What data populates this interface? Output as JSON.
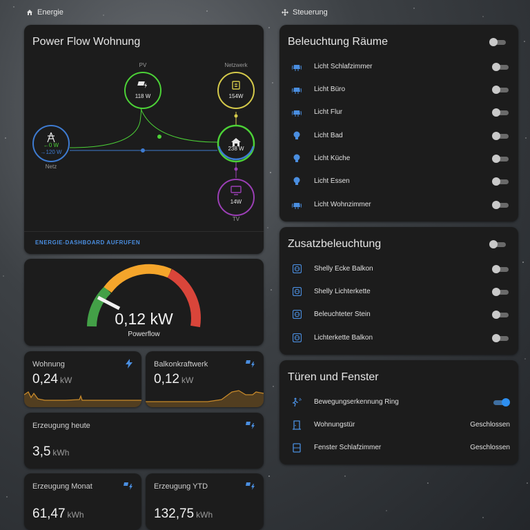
{
  "columns": {
    "left_title": "Energie",
    "right_title": "Steuerung"
  },
  "power_flow": {
    "title": "Power Flow Wohnung",
    "pv": {
      "label": "PV",
      "value": "118 W"
    },
    "grid_node": {
      "label": "Netzwerk",
      "value": "154W"
    },
    "netz": {
      "label": "Netz",
      "in": "←0 W",
      "out": "→120 W"
    },
    "home": {
      "value": "238 W"
    },
    "tv": {
      "label": "TV",
      "value": "14W"
    },
    "link": "ENERGIE-DASHBOARD AUFRUFEN",
    "colors": {
      "pv": "#4cd137",
      "grid": "#d4c94a",
      "netz": "#3e7bd1",
      "tv": "#9b3fb5"
    }
  },
  "gauge": {
    "value_text": "0,12 kW",
    "label": "Powerflow",
    "value": 0.12,
    "colors": {
      "green": "#43a047",
      "orange": "#f4a52b",
      "red": "#d9453a"
    }
  },
  "stats": {
    "wohnung": {
      "label": "Wohnung",
      "value": "0,24",
      "unit": "kW"
    },
    "balkon": {
      "label": "Balkonkraftwerk",
      "value": "0,12",
      "unit": "kW"
    },
    "heute": {
      "label": "Erzeugung heute",
      "value": "3,5",
      "unit": "kWh"
    },
    "monat": {
      "label": "Erzeugung Monat",
      "value": "61,47",
      "unit": "kWh"
    },
    "ytd": {
      "label": "Erzeugung YTD",
      "value": "132,75",
      "unit": "kWh"
    }
  },
  "lights": {
    "title": "Beleuchtung Räume",
    "items": [
      {
        "label": "Licht Schlafzimmer",
        "icon": "ceiling-light-icon"
      },
      {
        "label": "Licht Büro",
        "icon": "ceiling-light-icon"
      },
      {
        "label": "Licht Flur",
        "icon": "ceiling-light-icon"
      },
      {
        "label": "Licht Bad",
        "icon": "bulb-icon"
      },
      {
        "label": "Licht Küche",
        "icon": "bulb-icon"
      },
      {
        "label": "Licht Essen",
        "icon": "bulb-icon"
      },
      {
        "label": "Licht Wohnzimmer",
        "icon": "ceiling-light-icon"
      }
    ]
  },
  "extra": {
    "title": "Zusatzbeleuchtung",
    "items": [
      {
        "label": "Shelly Ecke Balkon"
      },
      {
        "label": "Shelly Lichterkette"
      },
      {
        "label": "Beleuchteter Stein"
      },
      {
        "label": "Lichterkette Balkon"
      }
    ]
  },
  "doors": {
    "title": "Türen und Fenster",
    "items": [
      {
        "label": "Bewegungserkennung Ring",
        "state": ""
      },
      {
        "label": "Wohnungstür",
        "state": "Geschlossen"
      },
      {
        "label": "Fenster Schlafzimmer",
        "state": "Geschlossen"
      }
    ]
  },
  "accent": "#4a8ee0"
}
